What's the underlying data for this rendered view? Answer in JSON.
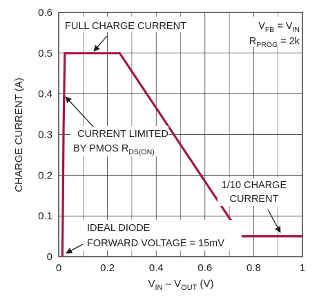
{
  "chart_data": {
    "type": "line",
    "title": "",
    "xlabel": {
      "main": "V",
      "sub1": "IN",
      "mid": " – V",
      "sub2": "OUT",
      "end": " (V)"
    },
    "ylabel": "CHARGE CURRENT (A)",
    "xlim": [
      0,
      1
    ],
    "ylim": [
      0,
      0.6
    ],
    "x_ticks": [
      "0",
      "0.2",
      "0.4",
      "0.6",
      "0.8",
      "1"
    ],
    "y_ticks": [
      "0",
      "0.1",
      "0.2",
      "0.3",
      "0.4",
      "0.5",
      "0.6"
    ],
    "grid": true,
    "series_color": "#a6144a",
    "series": [
      {
        "x": [
          0.015,
          0.017,
          0.02,
          0.025,
          0.25,
          0.75,
          1.0
        ],
        "y": [
          0.0,
          0.1,
          0.32,
          0.5,
          0.5,
          0.05,
          0.05
        ]
      }
    ],
    "annotations": {
      "full_charge": "FULL CHARGE CURRENT",
      "condition_vfb": {
        "main": "V",
        "sub1": "FB",
        "mid": " = V",
        "sub2": "IN"
      },
      "condition_rprog": {
        "main": "R",
        "sub1": "PROG",
        "end": " = 2k"
      },
      "current_limited_line1": "CURRENT LIMITED",
      "current_limited_line2": {
        "main": "BY PMOS R",
        "sub1": "DS(ON)"
      },
      "tenth_line1": "1/10 CHARGE",
      "tenth_line2": "CURRENT",
      "diode_line1": "IDEAL DIODE",
      "diode_line2": "FORWARD VOLTAGE = 15mV"
    }
  }
}
